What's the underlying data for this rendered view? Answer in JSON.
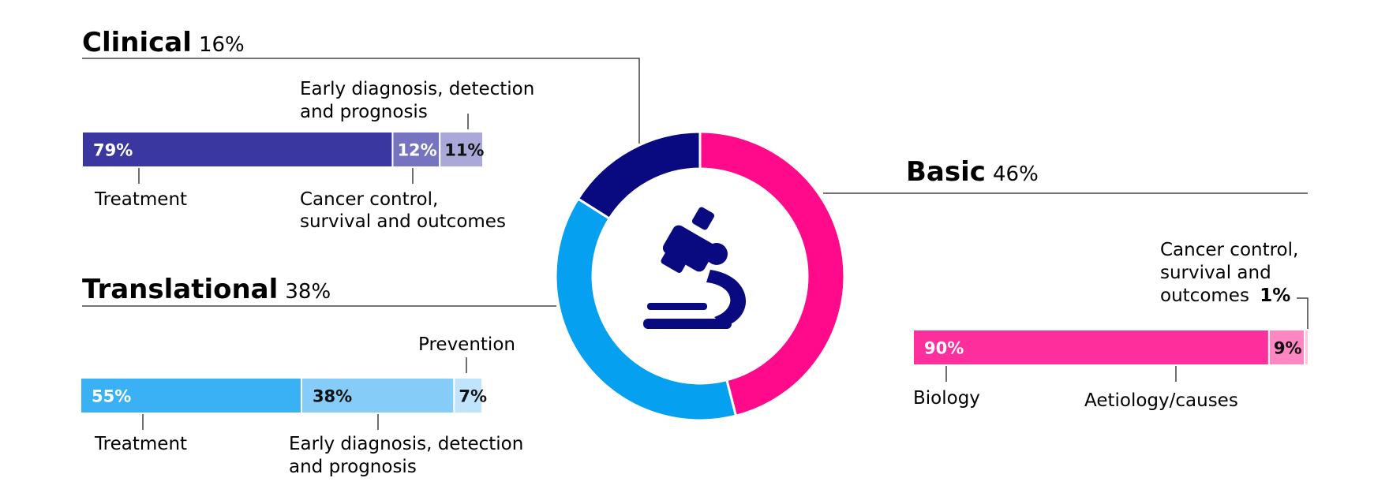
{
  "colors": {
    "line": "#222222",
    "clinical": [
      "#3a38a0",
      "#7674c0",
      "#a9a8d8"
    ],
    "translational": [
      "#3ab0f5",
      "#86ccf8",
      "#c0e4fb"
    ],
    "basic": [
      "#fd2f9d",
      "#fd86c3",
      "#fdc6e3"
    ],
    "donut": {
      "basic": "#ff0a8a",
      "translational": "#06a0f0",
      "clinical": "#0a0a80"
    },
    "icon": "#0a0a80"
  },
  "icon": "microscope-icon",
  "chart_data": [
    {
      "type": "pie",
      "slices": [
        {
          "label": "Basic",
          "value": 46
        },
        {
          "label": "Translational",
          "value": 38
        },
        {
          "label": "Clinical",
          "value": 16
        }
      ]
    },
    {
      "type": "bar",
      "stacked": true,
      "title": "Clinical",
      "title_value": "16%",
      "segments": [
        {
          "value": 79,
          "label": "79%",
          "name": "Treatment"
        },
        {
          "value": 12,
          "label": "12%",
          "name": "Cancer control, survival and outcomes"
        },
        {
          "value": 11,
          "label": "11%",
          "name": "Early diagnosis, detection and prognosis"
        }
      ]
    },
    {
      "type": "bar",
      "stacked": true,
      "title": "Translational",
      "title_value": "38%",
      "segments": [
        {
          "value": 55,
          "label": "55%",
          "name": "Treatment"
        },
        {
          "value": 38,
          "label": "38%",
          "name": "Early diagnosis, detection and prognosis"
        },
        {
          "value": 7,
          "label": "7%",
          "name": "Prevention"
        }
      ]
    },
    {
      "type": "bar",
      "stacked": true,
      "title": "Basic",
      "title_value": "46%",
      "segments": [
        {
          "value": 90,
          "label": "90%",
          "name": "Biology"
        },
        {
          "value": 9,
          "label": "9%",
          "name": "Aetiology/causes"
        },
        {
          "value": 1,
          "label": "1%",
          "name": "Cancer control, survival and outcomes"
        }
      ]
    }
  ],
  "clinical": {
    "title": "Clinical",
    "pct": "16%",
    "bar_labels": [
      "79%",
      "12%",
      "11%"
    ],
    "callouts": {
      "treatment": "Treatment",
      "control_1": "Cancer control,",
      "control_2": "survival and outcomes",
      "early_1": "Early diagnosis, detection",
      "early_2": "and prognosis"
    }
  },
  "translational": {
    "title": "Translational",
    "pct": "38%",
    "bar_labels": [
      "55%",
      "38%",
      "7%"
    ],
    "callouts": {
      "treatment": "Treatment",
      "early_1": "Early diagnosis, detection",
      "early_2": "and prognosis",
      "prevention": "Prevention"
    }
  },
  "basic": {
    "title": "Basic",
    "pct": "46%",
    "bar_labels": [
      "90%",
      "9%"
    ],
    "callouts": {
      "biology": "Biology",
      "aetiology": "Aetiology/causes",
      "control_1": "Cancer control,",
      "control_2": "survival and",
      "control_3": "outcomes",
      "control_pct": "1%"
    }
  }
}
